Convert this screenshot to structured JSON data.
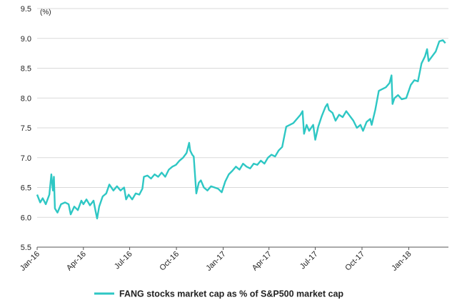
{
  "chart_data": {
    "type": "line",
    "title": "",
    "unit_label": "(%)",
    "ylim": [
      5.5,
      9.5
    ],
    "y_ticks": [
      "5.5",
      "6.0",
      "6.5",
      "7.0",
      "7.5",
      "8.0",
      "8.5",
      "9.0",
      "9.5"
    ],
    "x_ticks": [
      "Jan-16",
      "Apr-16",
      "Jul-16",
      "Oct-16",
      "Jan-17",
      "Apr-17",
      "Jul-17",
      "Oct-17",
      "Jan-18"
    ],
    "x_tick_dates": [
      "2016-01-01",
      "2016-04-01",
      "2016-07-01",
      "2016-10-01",
      "2017-01-01",
      "2017-04-01",
      "2017-07-01",
      "2017-10-01",
      "2018-01-01"
    ],
    "xlim": [
      "2016-01-01",
      "2018-03-20"
    ],
    "grid": "horizontal",
    "legend_position": "bottom",
    "colors": {
      "series": "#2ec7c4",
      "grid": "#d9d9d9",
      "axis": "#555555"
    },
    "series": [
      {
        "name": "FANG stocks market cap as % of S&P500 market cap",
        "points": [
          [
            "2016-01-01",
            6.38
          ],
          [
            "2016-01-07",
            6.25
          ],
          [
            "2016-01-12",
            6.32
          ],
          [
            "2016-01-18",
            6.22
          ],
          [
            "2016-01-25",
            6.38
          ],
          [
            "2016-01-29",
            6.72
          ],
          [
            "2016-02-01",
            6.45
          ],
          [
            "2016-02-03",
            6.68
          ],
          [
            "2016-02-05",
            6.15
          ],
          [
            "2016-02-10",
            6.08
          ],
          [
            "2016-02-17",
            6.22
          ],
          [
            "2016-02-25",
            6.25
          ],
          [
            "2016-03-03",
            6.22
          ],
          [
            "2016-03-07",
            6.05
          ],
          [
            "2016-03-14",
            6.18
          ],
          [
            "2016-03-21",
            6.12
          ],
          [
            "2016-03-28",
            6.28
          ],
          [
            "2016-04-01",
            6.22
          ],
          [
            "2016-04-07",
            6.3
          ],
          [
            "2016-04-14",
            6.2
          ],
          [
            "2016-04-21",
            6.28
          ],
          [
            "2016-04-25",
            6.1
          ],
          [
            "2016-04-28",
            5.98
          ],
          [
            "2016-05-02",
            6.18
          ],
          [
            "2016-05-09",
            6.35
          ],
          [
            "2016-05-16",
            6.4
          ],
          [
            "2016-05-22",
            6.55
          ],
          [
            "2016-05-30",
            6.45
          ],
          [
            "2016-06-06",
            6.52
          ],
          [
            "2016-06-13",
            6.45
          ],
          [
            "2016-06-20",
            6.5
          ],
          [
            "2016-06-24",
            6.3
          ],
          [
            "2016-06-29",
            6.38
          ],
          [
            "2016-07-06",
            6.3
          ],
          [
            "2016-07-13",
            6.4
          ],
          [
            "2016-07-20",
            6.38
          ],
          [
            "2016-07-26",
            6.48
          ],
          [
            "2016-07-29",
            6.68
          ],
          [
            "2016-08-05",
            6.7
          ],
          [
            "2016-08-12",
            6.65
          ],
          [
            "2016-08-19",
            6.72
          ],
          [
            "2016-08-26",
            6.68
          ],
          [
            "2016-09-02",
            6.75
          ],
          [
            "2016-09-09",
            6.68
          ],
          [
            "2016-09-16",
            6.8
          ],
          [
            "2016-09-23",
            6.85
          ],
          [
            "2016-09-30",
            6.88
          ],
          [
            "2016-10-07",
            6.95
          ],
          [
            "2016-10-14",
            7.0
          ],
          [
            "2016-10-21",
            7.08
          ],
          [
            "2016-10-26",
            7.25
          ],
          [
            "2016-10-28",
            7.12
          ],
          [
            "2016-11-01",
            7.05
          ],
          [
            "2016-11-04",
            7.02
          ],
          [
            "2016-11-09",
            6.4
          ],
          [
            "2016-11-14",
            6.58
          ],
          [
            "2016-11-18",
            6.62
          ],
          [
            "2016-11-24",
            6.5
          ],
          [
            "2016-12-01",
            6.45
          ],
          [
            "2016-12-08",
            6.52
          ],
          [
            "2016-12-15",
            6.5
          ],
          [
            "2016-12-22",
            6.48
          ],
          [
            "2016-12-29",
            6.42
          ],
          [
            "2017-01-05",
            6.6
          ],
          [
            "2017-01-12",
            6.72
          ],
          [
            "2017-01-19",
            6.78
          ],
          [
            "2017-01-26",
            6.85
          ],
          [
            "2017-02-02",
            6.8
          ],
          [
            "2017-02-09",
            6.9
          ],
          [
            "2017-02-16",
            6.85
          ],
          [
            "2017-02-23",
            6.82
          ],
          [
            "2017-03-02",
            6.9
          ],
          [
            "2017-03-09",
            6.88
          ],
          [
            "2017-03-16",
            6.95
          ],
          [
            "2017-03-23",
            6.9
          ],
          [
            "2017-03-30",
            7.0
          ],
          [
            "2017-04-06",
            7.05
          ],
          [
            "2017-04-13",
            7.02
          ],
          [
            "2017-04-20",
            7.12
          ],
          [
            "2017-04-27",
            7.18
          ],
          [
            "2017-05-01",
            7.35
          ],
          [
            "2017-05-05",
            7.52
          ],
          [
            "2017-05-12",
            7.55
          ],
          [
            "2017-05-19",
            7.58
          ],
          [
            "2017-05-26",
            7.65
          ],
          [
            "2017-06-02",
            7.72
          ],
          [
            "2017-06-06",
            7.78
          ],
          [
            "2017-06-09",
            7.4
          ],
          [
            "2017-06-14",
            7.55
          ],
          [
            "2017-06-19",
            7.45
          ],
          [
            "2017-06-27",
            7.55
          ],
          [
            "2017-07-01",
            7.3
          ],
          [
            "2017-07-07",
            7.52
          ],
          [
            "2017-07-14",
            7.7
          ],
          [
            "2017-07-21",
            7.85
          ],
          [
            "2017-07-25",
            7.9
          ],
          [
            "2017-07-28",
            7.8
          ],
          [
            "2017-08-04",
            7.75
          ],
          [
            "2017-08-10",
            7.62
          ],
          [
            "2017-08-17",
            7.72
          ],
          [
            "2017-08-24",
            7.68
          ],
          [
            "2017-08-31",
            7.78
          ],
          [
            "2017-09-07",
            7.7
          ],
          [
            "2017-09-14",
            7.62
          ],
          [
            "2017-09-21",
            7.5
          ],
          [
            "2017-09-28",
            7.55
          ],
          [
            "2017-10-03",
            7.45
          ],
          [
            "2017-10-10",
            7.6
          ],
          [
            "2017-10-17",
            7.65
          ],
          [
            "2017-10-20",
            7.55
          ],
          [
            "2017-10-27",
            7.8
          ],
          [
            "2017-11-03",
            8.12
          ],
          [
            "2017-11-10",
            8.15
          ],
          [
            "2017-11-17",
            8.18
          ],
          [
            "2017-11-24",
            8.25
          ],
          [
            "2017-11-28",
            8.38
          ],
          [
            "2017-11-30",
            7.9
          ],
          [
            "2017-12-04",
            8.0
          ],
          [
            "2017-12-11",
            8.05
          ],
          [
            "2017-12-18",
            7.98
          ],
          [
            "2017-12-27",
            8.0
          ],
          [
            "2018-01-05",
            8.22
          ],
          [
            "2018-01-12",
            8.3
          ],
          [
            "2018-01-19",
            8.28
          ],
          [
            "2018-01-26",
            8.58
          ],
          [
            "2018-02-02",
            8.7
          ],
          [
            "2018-02-06",
            8.82
          ],
          [
            "2018-02-09",
            8.62
          ],
          [
            "2018-02-16",
            8.7
          ],
          [
            "2018-02-23",
            8.78
          ],
          [
            "2018-03-02",
            8.95
          ],
          [
            "2018-03-09",
            8.97
          ],
          [
            "2018-03-14",
            8.92
          ]
        ]
      }
    ]
  }
}
